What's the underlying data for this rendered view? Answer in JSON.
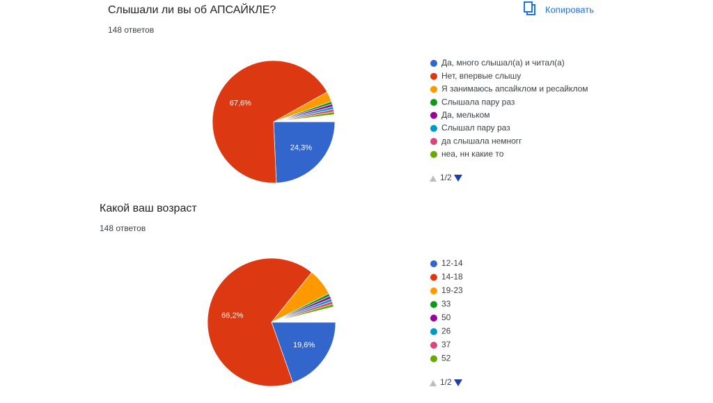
{
  "toolbar": {
    "copy_button": "Копировать"
  },
  "chart_data": [
    {
      "type": "pie",
      "title": "Слышали ли вы об АПСАЙКЛЕ?",
      "subtitle": "148 ответов",
      "categories": [
        "Да, много слышал(а) и читал(а)",
        "Нет, впервые слышу",
        "Я занимаюсь апсайклом и ресайклом",
        "Слышала пару раз",
        "Да, мельком",
        "Слышал пару раз",
        "да слышала немногг",
        "неа, нн какие то"
      ],
      "values": [
        24.3,
        67.6,
        2.7,
        0.7,
        0.7,
        0.7,
        0.7,
        0.7
      ],
      "value_labels": [
        "24,3%",
        "67,6%",
        null,
        null,
        null,
        null,
        null,
        null
      ],
      "colors": [
        "#3366cc",
        "#dc3912",
        "#ff9900",
        "#109618",
        "#990099",
        "#0099c6",
        "#dd4477",
        "#66aa00"
      ],
      "pager": "1/2"
    },
    {
      "type": "pie",
      "title": "Какой ваш возраст",
      "subtitle": "148 ответов",
      "categories": [
        "12-14",
        "14-18",
        "19-23",
        "33",
        "50",
        "26",
        "37",
        "52"
      ],
      "values": [
        19.6,
        66.2,
        6.8,
        0.7,
        0.7,
        0.7,
        0.7,
        0.7
      ],
      "value_labels": [
        "19,6%",
        "66,2%",
        null,
        null,
        null,
        null,
        null,
        null
      ],
      "colors": [
        "#3366cc",
        "#dc3912",
        "#ff9900",
        "#109618",
        "#990099",
        "#0099c6",
        "#dd4477",
        "#66aa00"
      ],
      "pager": "1/2"
    }
  ]
}
